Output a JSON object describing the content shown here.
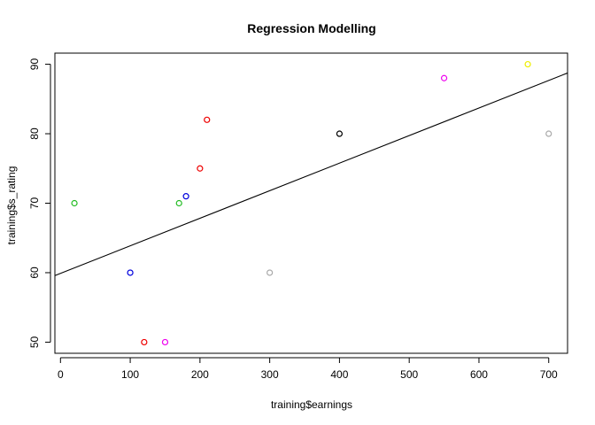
{
  "chart_data": {
    "type": "scatter",
    "title": "Regression Modelling",
    "xlabel": "training$earnings",
    "ylabel": "training$s_rating",
    "xlim": [
      -8,
      727
    ],
    "ylim": [
      48.4,
      91.6
    ],
    "xticks": [
      0,
      100,
      200,
      300,
      400,
      500,
      600,
      700
    ],
    "yticks": [
      50,
      60,
      70,
      80,
      90
    ],
    "points": [
      {
        "x": 20,
        "y": 70,
        "color": "#22bb22"
      },
      {
        "x": 100,
        "y": 60,
        "color": "#0000dd"
      },
      {
        "x": 120,
        "y": 50,
        "color": "#ee0000"
      },
      {
        "x": 150,
        "y": 50,
        "color": "#ee00ee"
      },
      {
        "x": 170,
        "y": 70,
        "color": "#22bb22"
      },
      {
        "x": 180,
        "y": 71,
        "color": "#0000dd"
      },
      {
        "x": 200,
        "y": 75,
        "color": "#ee0000"
      },
      {
        "x": 210,
        "y": 82,
        "color": "#ee0000"
      },
      {
        "x": 300,
        "y": 60,
        "color": "#aaaaaa"
      },
      {
        "x": 400,
        "y": 80,
        "color": "#000000"
      },
      {
        "x": 550,
        "y": 88,
        "color": "#ee00ee"
      },
      {
        "x": 670,
        "y": 90,
        "color": "#eeee00"
      },
      {
        "x": 700,
        "y": 80,
        "color": "#aaaaaa"
      }
    ],
    "regression_line": {
      "intercept": 59.9,
      "slope": 0.03967,
      "color": "#000000"
    },
    "grid": false,
    "legend": "none"
  }
}
